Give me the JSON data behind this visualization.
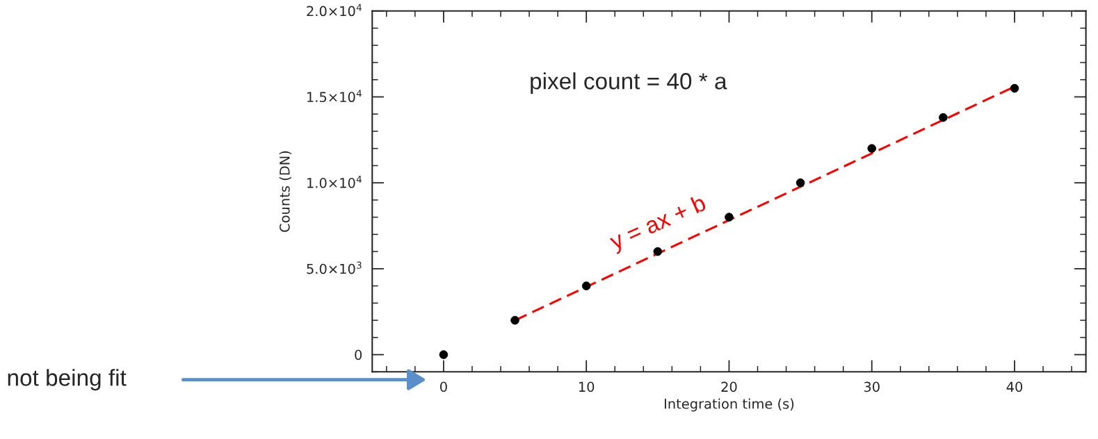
{
  "chart_data": {
    "type": "scatter",
    "xlabel": "Integration time (s)",
    "ylabel": "Counts (DN)",
    "x": [
      0,
      5,
      10,
      15,
      20,
      25,
      30,
      35,
      40
    ],
    "series": [
      {
        "color": "#000000",
        "marker": "circle",
        "values": [
          0,
          2000,
          4000,
          6000,
          8000,
          10000,
          12000,
          13800,
          15500
        ]
      },
      {
        "type": "line",
        "color": "#ff0000",
        "line_style": "dashed",
        "marker": "none",
        "x": [
          5,
          40
        ],
        "values": [
          2000,
          15600
        ]
      }
    ],
    "xlim": [
      -5,
      45
    ],
    "xticks": [
      0,
      10,
      20,
      30,
      40
    ],
    "ylim": [
      -1000,
      20000
    ],
    "yticks": [
      0,
      {
        "value": 5000,
        "label": "5.0×10$^{3}$"
      },
      {
        "value": 10000,
        "label": "1.0×10$^{4}$"
      },
      {
        "value": 15000,
        "label": "1.5×10$^{4}$"
      },
      {
        "value": 20000,
        "label": "2.0×10$^{4}$"
      }
    ],
    "grid": false,
    "legend": false,
    "annotations": [
      "pixel count = 40 * a",
      "y = ax + b",
      "not being fit"
    ]
  }
}
